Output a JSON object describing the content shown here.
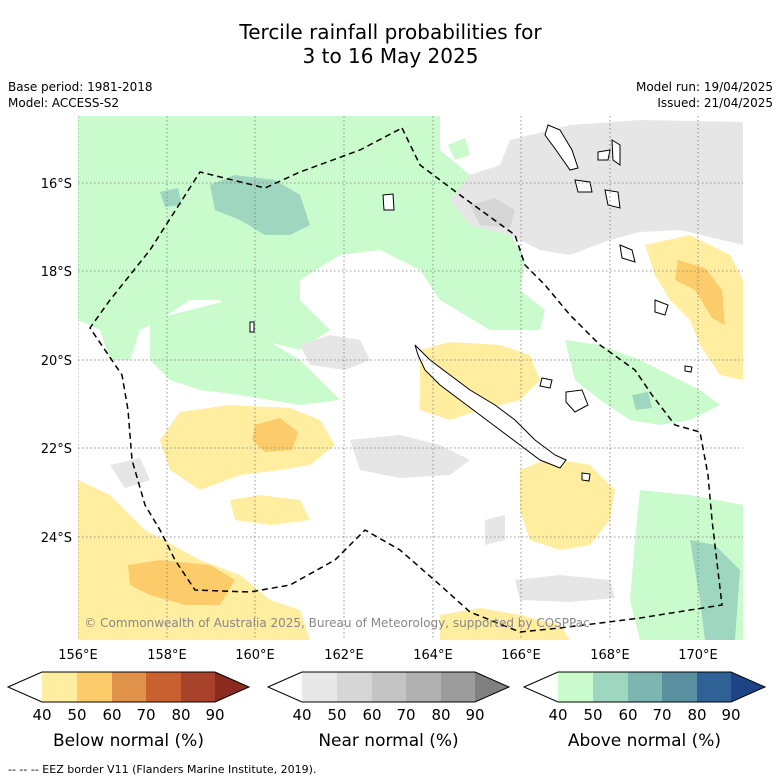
{
  "title": {
    "line1": "Tercile rainfall probabilities for",
    "line2": "3 to 16 May 2025"
  },
  "meta": {
    "base_period": "Base period: 1981-2018",
    "model": "Model: ACCESS-S2",
    "model_run": "Model run: 19/04/2025",
    "issued": "Issued: 21/04/2025"
  },
  "map": {
    "lon_ticks": [
      "156°E",
      "158°E",
      "160°E",
      "162°E",
      "164°E",
      "166°E",
      "168°E",
      "170°E"
    ],
    "lat_ticks": [
      "16°S",
      "18°S",
      "20°S",
      "22°S",
      "24°S"
    ],
    "copyright": "© Commonwealth of Australia 2025, Bureau of Meteorology, supported by COSPPac"
  },
  "colorbars": [
    {
      "label": "Below normal (%)",
      "ticks": [
        "40",
        "50",
        "60",
        "70",
        "80",
        "90"
      ],
      "colors": [
        "#ffffff",
        "#ffeda0",
        "#fdcc6a",
        "#e0914a",
        "#c8602f",
        "#a8422a",
        "#8b2a1e"
      ]
    },
    {
      "label": "Near normal (%)",
      "ticks": [
        "40",
        "50",
        "60",
        "70",
        "80",
        "90"
      ],
      "colors": [
        "#ffffff",
        "#e8e8e8",
        "#d6d6d6",
        "#c4c4c4",
        "#b1b1b1",
        "#9c9c9c",
        "#808080"
      ]
    },
    {
      "label": "Above normal (%)",
      "ticks": [
        "40",
        "50",
        "60",
        "70",
        "80",
        "90"
      ],
      "colors": [
        "#ffffff",
        "#c9fbcc",
        "#9fd6c0",
        "#7db5b0",
        "#5a8fa0",
        "#2f6196",
        "#1d4585"
      ]
    }
  ],
  "footer": "--  --  -- EEZ border V11 (Flanders Marine Institute, 2019)."
}
